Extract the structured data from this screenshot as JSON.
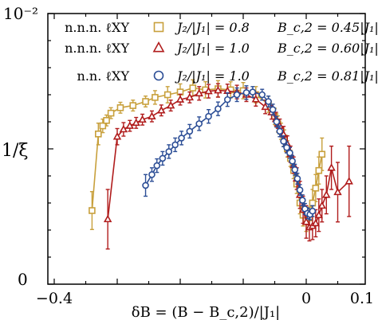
{
  "chart_data": {
    "type": "line",
    "title": "",
    "xlabel": "δB = (B − B_c,2)/|J₁|",
    "ylabel": "1/ξ",
    "xlim": [
      -0.4,
      0.1
    ],
    "ylim": [
      0,
      1
    ],
    "x_ticks": [
      -0.4,
      0,
      0.1
    ],
    "x_tick_labels": [
      "−0.4",
      "0",
      "0.1"
    ],
    "y_tick_labels": [
      "0",
      "10⁻²"
    ],
    "grid": false,
    "legend_position": "top",
    "legend": [
      {
        "model": "n.n.n. ℓXY",
        "ratio": "J₂/|J₁| = 0.8",
        "field": "B_c,2 = 0.45|J₁|"
      },
      {
        "model": "n.n.n. ℓXY",
        "ratio": "J₂/|J₁| = 1.0",
        "field": "B_c,2 = 0.60|J₁|"
      },
      {
        "model": "n.n. ℓXY",
        "ratio": "J₂/|J₁| = 1.0",
        "field": "B_c,2 = 0.81|J₁|"
      }
    ],
    "series": [
      {
        "color": "#c8a03c",
        "marker": "square",
        "points": [
          [
            -0.34,
            0.272,
            0.07
          ],
          [
            -0.33,
            0.555,
            0.04
          ],
          [
            -0.323,
            0.585,
            0.025
          ],
          [
            -0.317,
            0.605,
            0.02
          ],
          [
            -0.31,
            0.632,
            0.02
          ],
          [
            -0.295,
            0.652,
            0.02
          ],
          [
            -0.275,
            0.66,
            0.02
          ],
          [
            -0.255,
            0.675,
            0.02
          ],
          [
            -0.24,
            0.69,
            0.025
          ],
          [
            -0.22,
            0.7,
            0.03
          ],
          [
            -0.2,
            0.71,
            0.03
          ],
          [
            -0.18,
            0.725,
            0.03
          ],
          [
            -0.16,
            0.718,
            0.03
          ],
          [
            -0.14,
            0.722,
            0.03
          ],
          [
            -0.12,
            0.718,
            0.03
          ],
          [
            -0.1,
            0.715,
            0.03
          ],
          [
            -0.08,
            0.7,
            0.03
          ],
          [
            -0.06,
            0.665,
            0.03
          ],
          [
            -0.05,
            0.62,
            0.03
          ],
          [
            -0.045,
            0.592,
            0.03
          ],
          [
            -0.04,
            0.565,
            0.03
          ],
          [
            -0.035,
            0.54,
            0.03
          ],
          [
            -0.03,
            0.5,
            0.03
          ],
          [
            -0.025,
            0.465,
            0.03
          ],
          [
            -0.02,
            0.42,
            0.03
          ],
          [
            -0.015,
            0.37,
            0.035
          ],
          [
            -0.01,
            0.3,
            0.04
          ],
          [
            -0.005,
            0.255,
            0.04
          ],
          [
            0.0,
            0.235,
            0.04
          ],
          [
            0.005,
            0.245,
            0.04
          ],
          [
            0.01,
            0.3,
            0.05
          ],
          [
            0.015,
            0.355,
            0.05
          ],
          [
            0.02,
            0.42,
            0.05
          ],
          [
            0.025,
            0.48,
            0.06
          ]
        ]
      },
      {
        "color": "#b01c1c",
        "marker": "triangle",
        "points": [
          [
            -0.315,
            0.24,
            0.11
          ],
          [
            -0.3,
            0.545,
            0.03
          ],
          [
            -0.29,
            0.572,
            0.025
          ],
          [
            -0.28,
            0.585,
            0.02
          ],
          [
            -0.27,
            0.596,
            0.02
          ],
          [
            -0.26,
            0.608,
            0.02
          ],
          [
            -0.245,
            0.62,
            0.02
          ],
          [
            -0.23,
            0.642,
            0.02
          ],
          [
            -0.215,
            0.66,
            0.02
          ],
          [
            -0.2,
            0.682,
            0.02
          ],
          [
            -0.185,
            0.69,
            0.02
          ],
          [
            -0.17,
            0.705,
            0.025
          ],
          [
            -0.155,
            0.713,
            0.025
          ],
          [
            -0.14,
            0.716,
            0.025
          ],
          [
            -0.125,
            0.714,
            0.025
          ],
          [
            -0.11,
            0.71,
            0.025
          ],
          [
            -0.095,
            0.7,
            0.025
          ],
          [
            -0.08,
            0.683,
            0.025
          ],
          [
            -0.065,
            0.655,
            0.025
          ],
          [
            -0.055,
            0.635,
            0.025
          ],
          [
            -0.048,
            0.61,
            0.025
          ],
          [
            -0.042,
            0.585,
            0.025
          ],
          [
            -0.036,
            0.553,
            0.03
          ],
          [
            -0.03,
            0.518,
            0.03
          ],
          [
            -0.025,
            0.48,
            0.03
          ],
          [
            -0.02,
            0.44,
            0.03
          ],
          [
            -0.015,
            0.39,
            0.04
          ],
          [
            -0.01,
            0.33,
            0.05
          ],
          [
            -0.005,
            0.275,
            0.05
          ],
          [
            0.0,
            0.23,
            0.06
          ],
          [
            0.005,
            0.21,
            0.05
          ],
          [
            0.01,
            0.215,
            0.05
          ],
          [
            0.015,
            0.225,
            0.05
          ],
          [
            0.02,
            0.255,
            0.06
          ],
          [
            0.025,
            0.29,
            0.06
          ],
          [
            0.032,
            0.33,
            0.07
          ],
          [
            0.04,
            0.43,
            0.08
          ],
          [
            0.05,
            0.34,
            0.11
          ],
          [
            0.068,
            0.38,
            0.13
          ]
        ]
      },
      {
        "color": "#2c4e96",
        "marker": "circle",
        "points": [
          [
            -0.255,
            0.365,
            0.04
          ],
          [
            -0.245,
            0.405,
            0.025
          ],
          [
            -0.237,
            0.438,
            0.025
          ],
          [
            -0.228,
            0.465,
            0.025
          ],
          [
            -0.218,
            0.49,
            0.025
          ],
          [
            -0.208,
            0.515,
            0.025
          ],
          [
            -0.198,
            0.54,
            0.025
          ],
          [
            -0.185,
            0.565,
            0.025
          ],
          [
            -0.17,
            0.593,
            0.025
          ],
          [
            -0.155,
            0.62,
            0.025
          ],
          [
            -0.14,
            0.648,
            0.025
          ],
          [
            -0.125,
            0.682,
            0.025
          ],
          [
            -0.11,
            0.7,
            0.025
          ],
          [
            -0.095,
            0.708,
            0.025
          ],
          [
            -0.085,
            0.71,
            0.02
          ],
          [
            -0.07,
            0.7,
            0.02
          ],
          [
            -0.06,
            0.675,
            0.02
          ],
          [
            -0.053,
            0.645,
            0.02
          ],
          [
            -0.047,
            0.6,
            0.02
          ],
          [
            -0.042,
            0.565,
            0.02
          ],
          [
            -0.036,
            0.528,
            0.02
          ],
          [
            -0.031,
            0.505,
            0.02
          ],
          [
            -0.026,
            0.485,
            0.02
          ],
          [
            -0.022,
            0.455,
            0.02
          ],
          [
            -0.018,
            0.423,
            0.02
          ],
          [
            -0.014,
            0.39,
            0.02
          ],
          [
            -0.01,
            0.348,
            0.02
          ],
          [
            -0.006,
            0.31,
            0.02
          ],
          [
            -0.002,
            0.278,
            0.02
          ],
          [
            0.002,
            0.262,
            0.02
          ],
          [
            0.006,
            0.258,
            0.02
          ],
          [
            0.01,
            0.27,
            0.02
          ]
        ]
      }
    ]
  }
}
